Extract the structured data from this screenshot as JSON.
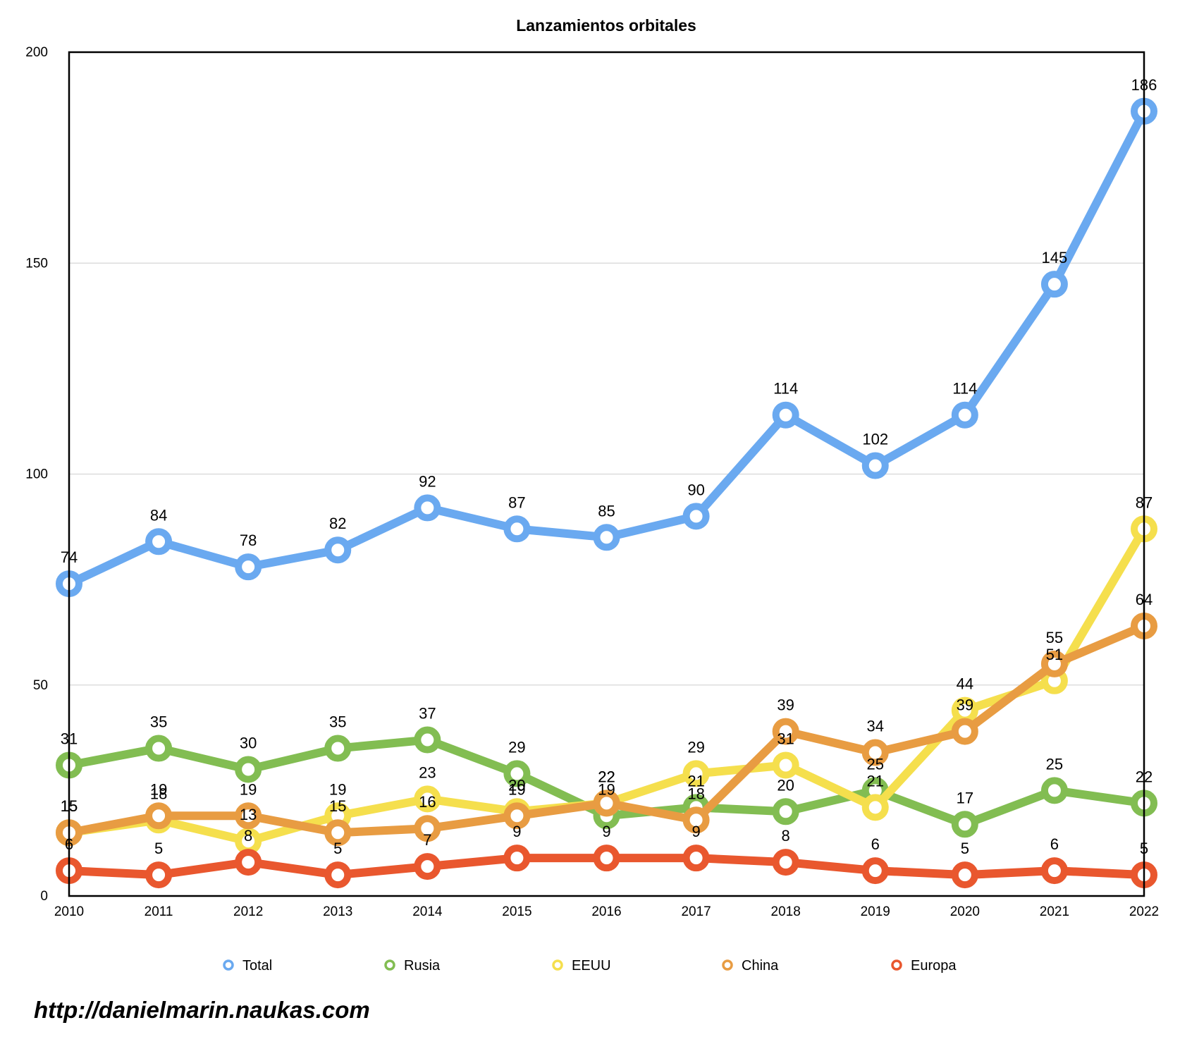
{
  "chart_data": {
    "type": "line",
    "title": "Lanzamientos orbitales",
    "xlabel": "",
    "ylabel": "",
    "ylim": [
      0,
      200
    ],
    "yticks": [
      0,
      50,
      100,
      150,
      200
    ],
    "grid": true,
    "legend_position": "bottom",
    "categories": [
      "2010",
      "2011",
      "2012",
      "2013",
      "2014",
      "2015",
      "2016",
      "2017",
      "2018",
      "2019",
      "2020",
      "2021",
      "2022"
    ],
    "series": [
      {
        "name": "Total",
        "color": "#6aa9f0",
        "values": [
          74,
          84,
          78,
          82,
          92,
          87,
          85,
          90,
          114,
          102,
          114,
          145,
          186
        ]
      },
      {
        "name": "Rusia",
        "color": "#82bd52",
        "values": [
          31,
          35,
          30,
          35,
          37,
          29,
          19,
          21,
          20,
          25,
          17,
          25,
          22
        ]
      },
      {
        "name": "EEUU",
        "color": "#f5df4d",
        "values": [
          15,
          18,
          13,
          19,
          23,
          20,
          22,
          29,
          31,
          21,
          44,
          51,
          87
        ]
      },
      {
        "name": "China",
        "color": "#e89c42",
        "values": [
          15,
          19,
          19,
          15,
          16,
          19,
          22,
          18,
          39,
          34,
          39,
          55,
          64
        ]
      },
      {
        "name": "Europa",
        "color": "#e9572e",
        "values": [
          6,
          5,
          8,
          5,
          7,
          9,
          9,
          9,
          8,
          6,
          5,
          6,
          5
        ]
      }
    ]
  },
  "watermark": "http://danielmarin.naukas.com"
}
